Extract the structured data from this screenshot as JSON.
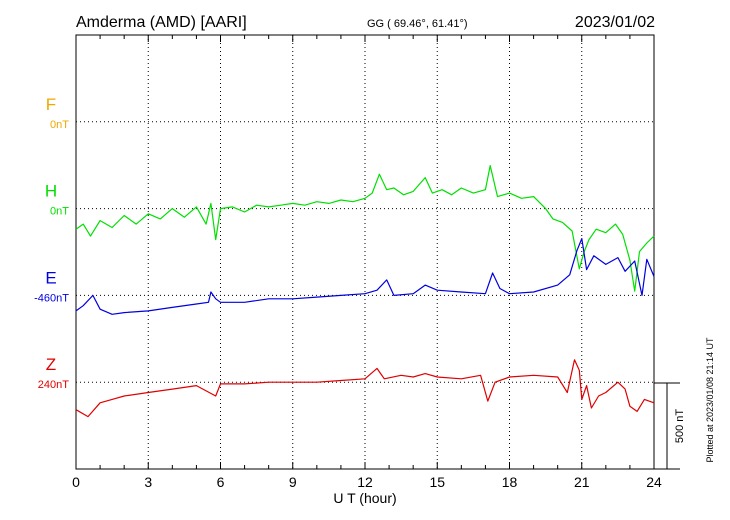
{
  "header": {
    "station": "Amderma (AMD)  [AARI]",
    "coords": "GG ( 69.46°,  61.41°)",
    "date": "2023/01/02"
  },
  "footer": {
    "plotted": "Plotted at 2023/01/08 21:14 UT"
  },
  "chart_data": {
    "type": "line",
    "title": "Amderma (AMD)  [AARI]",
    "xlabel": "U T (hour)",
    "ylabel": "",
    "xlim": [
      0,
      24
    ],
    "x_ticks": [
      "0",
      "3",
      "6",
      "9",
      "12",
      "15",
      "18",
      "21",
      "24"
    ],
    "grid": true,
    "scale_bar": {
      "label": "500 nT",
      "value_nT": 500
    },
    "series": [
      {
        "name": "F",
        "baseline": "0nT",
        "color": "#f0a800",
        "points": []
      },
      {
        "name": "H",
        "baseline": "0nT",
        "color": "#00e000",
        "points": [
          [
            0,
            -120
          ],
          [
            0.3,
            -90
          ],
          [
            0.6,
            -160
          ],
          [
            1,
            -70
          ],
          [
            1.5,
            -110
          ],
          [
            2,
            -40
          ],
          [
            2.5,
            -90
          ],
          [
            3,
            -30
          ],
          [
            3.5,
            -60
          ],
          [
            4,
            0
          ],
          [
            4.5,
            -50
          ],
          [
            5,
            10
          ],
          [
            5.4,
            -90
          ],
          [
            5.6,
            30
          ],
          [
            5.8,
            -180
          ],
          [
            6,
            0
          ],
          [
            6.5,
            10
          ],
          [
            7,
            -20
          ],
          [
            7.5,
            20
          ],
          [
            8,
            10
          ],
          [
            8.5,
            20
          ],
          [
            9,
            30
          ],
          [
            9.5,
            20
          ],
          [
            10,
            40
          ],
          [
            10.5,
            30
          ],
          [
            11,
            50
          ],
          [
            11.5,
            40
          ],
          [
            12,
            60
          ],
          [
            12.3,
            90
          ],
          [
            12.6,
            200
          ],
          [
            12.9,
            110
          ],
          [
            13.2,
            120
          ],
          [
            13.6,
            80
          ],
          [
            14,
            100
          ],
          [
            14.5,
            180
          ],
          [
            14.8,
            90
          ],
          [
            15.2,
            110
          ],
          [
            15.6,
            80
          ],
          [
            16,
            120
          ],
          [
            16.5,
            90
          ],
          [
            17,
            110
          ],
          [
            17.2,
            250
          ],
          [
            17.5,
            70
          ],
          [
            18,
            90
          ],
          [
            18.5,
            60
          ],
          [
            19,
            70
          ],
          [
            19.5,
            0
          ],
          [
            19.8,
            -60
          ],
          [
            20.2,
            -80
          ],
          [
            20.6,
            -130
          ],
          [
            20.9,
            -350
          ],
          [
            21.1,
            -250
          ],
          [
            21.3,
            -180
          ],
          [
            21.6,
            -120
          ],
          [
            22,
            -140
          ],
          [
            22.4,
            -90
          ],
          [
            22.7,
            -150
          ],
          [
            23,
            -300
          ],
          [
            23.2,
            -480
          ],
          [
            23.4,
            -250
          ],
          [
            23.7,
            -200
          ],
          [
            24,
            -160
          ]
        ]
      },
      {
        "name": "E",
        "baseline": "-460nT",
        "color": "#0000e0",
        "points": [
          [
            0,
            -90
          ],
          [
            0.3,
            -60
          ],
          [
            0.7,
            0
          ],
          [
            1,
            -80
          ],
          [
            1.5,
            -110
          ],
          [
            2,
            -100
          ],
          [
            3,
            -90
          ],
          [
            4,
            -70
          ],
          [
            5,
            -50
          ],
          [
            5.5,
            -40
          ],
          [
            5.6,
            20
          ],
          [
            5.8,
            -20
          ],
          [
            6,
            -40
          ],
          [
            7,
            -40
          ],
          [
            8,
            -20
          ],
          [
            9,
            -20
          ],
          [
            10,
            -10
          ],
          [
            11,
            0
          ],
          [
            12,
            10
          ],
          [
            12.5,
            30
          ],
          [
            12.9,
            90
          ],
          [
            13.2,
            0
          ],
          [
            14,
            10
          ],
          [
            14.5,
            60
          ],
          [
            15,
            30
          ],
          [
            16,
            20
          ],
          [
            17,
            10
          ],
          [
            17.3,
            130
          ],
          [
            17.6,
            40
          ],
          [
            18,
            10
          ],
          [
            19,
            20
          ],
          [
            20,
            60
          ],
          [
            20.5,
            120
          ],
          [
            20.8,
            260
          ],
          [
            21,
            330
          ],
          [
            21.2,
            150
          ],
          [
            21.5,
            230
          ],
          [
            22,
            180
          ],
          [
            22.5,
            220
          ],
          [
            22.8,
            140
          ],
          [
            23.2,
            200
          ],
          [
            23.5,
            0
          ],
          [
            23.7,
            210
          ],
          [
            24,
            110
          ]
        ]
      },
      {
        "name": "Z",
        "baseline": "240nT",
        "color": "#e00000",
        "points": [
          [
            0,
            -160
          ],
          [
            0.5,
            -200
          ],
          [
            1,
            -120
          ],
          [
            1.5,
            -100
          ],
          [
            2,
            -80
          ],
          [
            3,
            -60
          ],
          [
            4,
            -40
          ],
          [
            5,
            -20
          ],
          [
            5.8,
            -80
          ],
          [
            6,
            -10
          ],
          [
            7,
            -10
          ],
          [
            8,
            0
          ],
          [
            9,
            0
          ],
          [
            10,
            0
          ],
          [
            11,
            10
          ],
          [
            12,
            20
          ],
          [
            12.5,
            80
          ],
          [
            12.8,
            20
          ],
          [
            13.5,
            40
          ],
          [
            14,
            30
          ],
          [
            14.5,
            50
          ],
          [
            15,
            30
          ],
          [
            16,
            20
          ],
          [
            16.8,
            40
          ],
          [
            17.1,
            -110
          ],
          [
            17.4,
            0
          ],
          [
            18,
            30
          ],
          [
            19,
            40
          ],
          [
            20,
            30
          ],
          [
            20.4,
            -60
          ],
          [
            20.7,
            130
          ],
          [
            20.9,
            70
          ],
          [
            21,
            -100
          ],
          [
            21.2,
            -20
          ],
          [
            21.4,
            -150
          ],
          [
            21.7,
            -80
          ],
          [
            22,
            -60
          ],
          [
            22.5,
            0
          ],
          [
            22.8,
            -40
          ],
          [
            23,
            -140
          ],
          [
            23.3,
            -170
          ],
          [
            23.6,
            -100
          ],
          [
            24,
            -120
          ]
        ]
      }
    ]
  }
}
